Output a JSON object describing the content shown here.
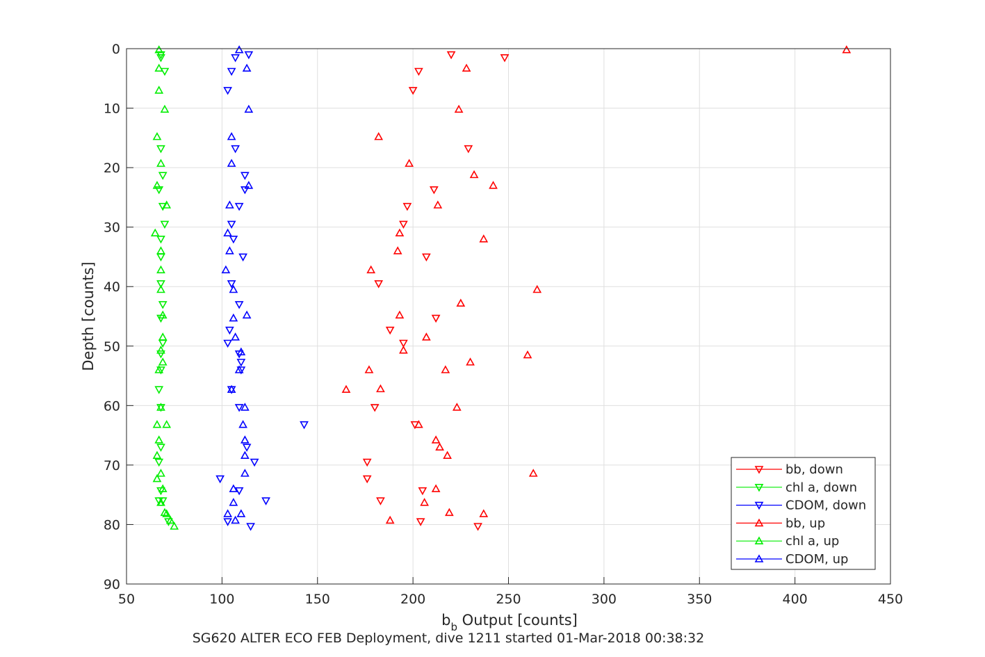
{
  "chart_data": {
    "type": "scatter",
    "xlabel": "b",
    "xlabel_sub": "b",
    "xlabel_rest": " Output [counts]",
    "ylabel": "Depth [counts]",
    "caption": "SG620 ALTER ECO FEB Deployment, dive 1211 started 01-Mar-2018 00:38:32",
    "xlim": [
      50,
      450
    ],
    "ylim": [
      0,
      90
    ],
    "y_reversed": true,
    "grid": true,
    "legend_position": "bottom-right",
    "xticks": [
      "50",
      "100",
      "150",
      "200",
      "250",
      "300",
      "350",
      "400",
      "450"
    ],
    "yticks": [
      "0",
      "10",
      "20",
      "30",
      "40",
      "50",
      "60",
      "70",
      "80",
      "90"
    ],
    "series": [
      {
        "name": "bb, down",
        "color": "#ff0000",
        "marker": "triangle-down",
        "points": [
          [
            220,
            1
          ],
          [
            248,
            1.5
          ],
          [
            203,
            3.8
          ],
          [
            200,
            7
          ],
          [
            229,
            16.8
          ],
          [
            211,
            23.7
          ],
          [
            197,
            26.5
          ],
          [
            195,
            29.5
          ],
          [
            207,
            35
          ],
          [
            182,
            39.5
          ],
          [
            212,
            45.3
          ],
          [
            188,
            47.3
          ],
          [
            195,
            49.5
          ],
          [
            180,
            60.3
          ],
          [
            201,
            63.2
          ],
          [
            176,
            69.5
          ],
          [
            176,
            72.3
          ],
          [
            205,
            74.3
          ],
          [
            183,
            76
          ],
          [
            204,
            79.5
          ],
          [
            234,
            80.3
          ]
        ]
      },
      {
        "name": "chl a, down",
        "color": "#00ee00",
        "marker": "triangle-down",
        "points": [
          [
            68,
            1
          ],
          [
            68,
            1.5
          ],
          [
            70,
            3.8
          ],
          [
            68,
            16.8
          ],
          [
            69,
            21.3
          ],
          [
            67,
            23.7
          ],
          [
            69,
            26.5
          ],
          [
            70,
            29.5
          ],
          [
            68,
            32
          ],
          [
            68,
            35
          ],
          [
            68,
            39.5
          ],
          [
            69,
            43
          ],
          [
            68,
            45.3
          ],
          [
            69,
            49.5
          ],
          [
            68,
            51.3
          ],
          [
            68,
            54
          ],
          [
            67,
            57.3
          ],
          [
            68,
            60.3
          ],
          [
            68,
            67
          ],
          [
            67,
            69.5
          ],
          [
            68,
            74.3
          ],
          [
            67,
            76
          ],
          [
            69,
            76
          ],
          [
            72,
            79.5
          ]
        ]
      },
      {
        "name": "CDOM, down",
        "color": "#0000ff",
        "marker": "triangle-down",
        "points": [
          [
            114,
            1
          ],
          [
            107,
            1.5
          ],
          [
            105,
            3.8
          ],
          [
            103,
            7
          ],
          [
            107,
            16.8
          ],
          [
            112,
            21.3
          ],
          [
            112,
            23.7
          ],
          [
            109,
            26.5
          ],
          [
            105,
            29.5
          ],
          [
            106,
            32
          ],
          [
            111,
            35
          ],
          [
            105,
            39.5
          ],
          [
            109,
            43
          ],
          [
            104,
            47.3
          ],
          [
            103,
            49.5
          ],
          [
            109,
            51.3
          ],
          [
            110,
            52.7
          ],
          [
            110,
            54
          ],
          [
            105,
            57.3
          ],
          [
            109,
            60.3
          ],
          [
            143,
            63.2
          ],
          [
            113,
            67
          ],
          [
            117,
            69.5
          ],
          [
            99,
            72.3
          ],
          [
            109,
            74.3
          ],
          [
            123,
            76
          ],
          [
            103,
            79.5
          ],
          [
            115,
            80.3
          ]
        ]
      },
      {
        "name": "bb, up",
        "color": "#ff0000",
        "marker": "triangle-up",
        "points": [
          [
            427,
            0.2
          ],
          [
            228,
            3.3
          ],
          [
            224,
            10.2
          ],
          [
            182,
            14.8
          ],
          [
            198,
            19.3
          ],
          [
            232,
            21.2
          ],
          [
            242,
            23
          ],
          [
            213,
            26.3
          ],
          [
            193,
            31
          ],
          [
            192,
            34
          ],
          [
            237,
            32
          ],
          [
            178,
            37.2
          ],
          [
            265,
            40.5
          ],
          [
            225,
            42.8
          ],
          [
            193,
            44.8
          ],
          [
            207,
            48.5
          ],
          [
            195,
            50.7
          ],
          [
            260,
            51.5
          ],
          [
            230,
            52.7
          ],
          [
            177,
            54
          ],
          [
            217,
            54
          ],
          [
            165,
            57.3
          ],
          [
            183,
            57.2
          ],
          [
            223,
            60.3
          ],
          [
            203,
            63.2
          ],
          [
            212,
            65.8
          ],
          [
            214,
            67
          ],
          [
            218,
            68.4
          ],
          [
            263,
            71.4
          ],
          [
            212,
            74
          ],
          [
            206,
            76.3
          ],
          [
            219,
            78
          ],
          [
            237,
            78.2
          ],
          [
            188,
            79.3
          ]
        ]
      },
      {
        "name": "chl a, up",
        "color": "#00ee00",
        "marker": "triangle-up",
        "points": [
          [
            67,
            0.2
          ],
          [
            67,
            3.3
          ],
          [
            67,
            7
          ],
          [
            70,
            10.2
          ],
          [
            66,
            14.8
          ],
          [
            68,
            19.3
          ],
          [
            66,
            23
          ],
          [
            71,
            26.3
          ],
          [
            65,
            31
          ],
          [
            68,
            34
          ],
          [
            68,
            37.2
          ],
          [
            68,
            40.5
          ],
          [
            69,
            44.8
          ],
          [
            69,
            48.5
          ],
          [
            68,
            50.7
          ],
          [
            69,
            52.7
          ],
          [
            67,
            54
          ],
          [
            68,
            60.3
          ],
          [
            66,
            63.2
          ],
          [
            71,
            63.2
          ],
          [
            67,
            65.8
          ],
          [
            66,
            68.4
          ],
          [
            68,
            71.4
          ],
          [
            66,
            72.3
          ],
          [
            69,
            74
          ],
          [
            68,
            76.3
          ],
          [
            70,
            78
          ],
          [
            71,
            78.2
          ],
          [
            73,
            79.3
          ],
          [
            75,
            80.3
          ]
        ]
      },
      {
        "name": "CDOM, up",
        "color": "#0000ff",
        "marker": "triangle-up",
        "points": [
          [
            109,
            0.2
          ],
          [
            113,
            3.3
          ],
          [
            114,
            10.2
          ],
          [
            105,
            14.8
          ],
          [
            105,
            19.3
          ],
          [
            114,
            23
          ],
          [
            104,
            26.3
          ],
          [
            103,
            31
          ],
          [
            104,
            34
          ],
          [
            102,
            37.2
          ],
          [
            106,
            40.5
          ],
          [
            113,
            44.8
          ],
          [
            106,
            45.3
          ],
          [
            107,
            48.5
          ],
          [
            110,
            51
          ],
          [
            109,
            54
          ],
          [
            105,
            57.3
          ],
          [
            112,
            60.3
          ],
          [
            111,
            63.2
          ],
          [
            112,
            65.8
          ],
          [
            112,
            68.4
          ],
          [
            112,
            71.4
          ],
          [
            106,
            74
          ],
          [
            106,
            76.3
          ],
          [
            110,
            78.2
          ],
          [
            103,
            78.2
          ],
          [
            107,
            79.3
          ]
        ]
      }
    ]
  }
}
